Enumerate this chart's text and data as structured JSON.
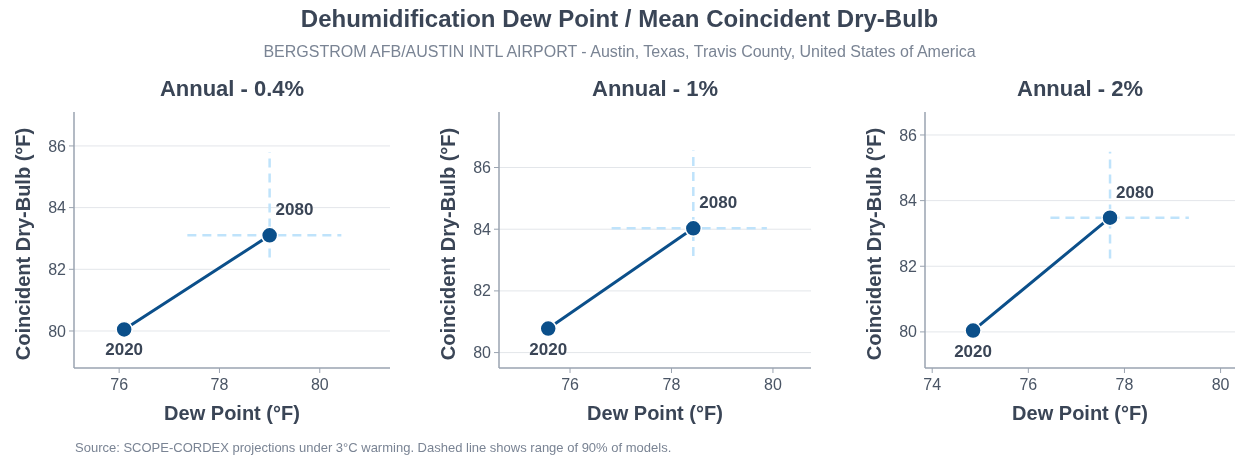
{
  "chart_data": [
    {
      "type": "other",
      "title": "Dehumidification Dew Point / Mean Coincident Dry-Bulb",
      "subtitle": "BERGSTROM AFB/AUSTIN INTL AIRPORT - Austin, Texas, Travis County, United States of America",
      "annotations": [
        "Source: SCOPE-CORDEX projections under 3°C warming. Dashed line shows range of 90% of models."
      ]
    },
    {
      "type": "line",
      "title": "Annual - 0.4%",
      "xlabel": "Dew Point (°F)",
      "ylabel": "Coincident Dry-Bulb (°F)",
      "xlim": [
        75.1,
        81.4
      ],
      "xticks": [
        76,
        78,
        80
      ],
      "ylim": [
        78.8,
        87.1
      ],
      "yticks": [
        80,
        82,
        84,
        86
      ],
      "grid": "y",
      "marker": "circle",
      "line_style": "solid",
      "series": [
        {
          "color": "#0b4f8a",
          "x": [
            76.1,
            79.0
          ],
          "values": [
            80.05,
            83.1
          ],
          "xerrors": [
            null,
            [
              77.36,
              80.43
            ]
          ],
          "errors": [
            null,
            [
              82.38,
              85.8
            ]
          ]
        }
      ],
      "annotations": [
        {
          "text": "2020",
          "x": 76.1,
          "y": 80.05
        },
        {
          "text": "2080",
          "x": 79.0,
          "y": 83.1
        }
      ]
    },
    {
      "type": "line",
      "title": "Annual - 1%",
      "xlabel": "Dew Point (°F)",
      "ylabel": "Coincident Dry-Bulb (°F)",
      "xlim": [
        74.6,
        80.75
      ],
      "xticks": [
        76,
        78,
        80
      ],
      "ylim": [
        79.5,
        87.8
      ],
      "yticks": [
        80,
        82,
        84,
        86
      ],
      "grid": "y",
      "marker": "circle",
      "line_style": "solid",
      "series": [
        {
          "color": "#0b4f8a",
          "x": [
            75.57,
            78.43
          ],
          "values": [
            80.78,
            84.03
          ],
          "xerrors": [
            null,
            [
              76.82,
              79.88
            ]
          ],
          "errors": [
            null,
            [
              83.13,
              86.55
            ]
          ]
        }
      ],
      "annotations": [
        {
          "text": "2020",
          "x": 75.57,
          "y": 80.78
        },
        {
          "text": "2080",
          "x": 78.43,
          "y": 84.03
        }
      ]
    },
    {
      "type": "line",
      "title": "Annual - 2%",
      "xlabel": "Dew Point (°F)",
      "ylabel": "Coincident Dry-Bulb (°F)",
      "xlim": [
        73.85,
        80.3
      ],
      "xticks": [
        74,
        76,
        78,
        80
      ],
      "ylim": [
        78.9,
        86.7
      ],
      "yticks": [
        80,
        82,
        84,
        86
      ],
      "grid": "y",
      "marker": "circle",
      "line_style": "solid",
      "series": [
        {
          "color": "#0b4f8a",
          "x": [
            74.85,
            77.7
          ],
          "values": [
            80.04,
            83.48
          ],
          "xerrors": [
            null,
            [
              76.46,
              79.34
            ]
          ],
          "errors": [
            null,
            [
              82.24,
              85.49
            ]
          ]
        }
      ],
      "annotations": [
        {
          "text": "2020",
          "x": 74.85,
          "y": 80.04
        },
        {
          "text": "2080",
          "x": 77.7,
          "y": 83.48
        }
      ]
    }
  ]
}
